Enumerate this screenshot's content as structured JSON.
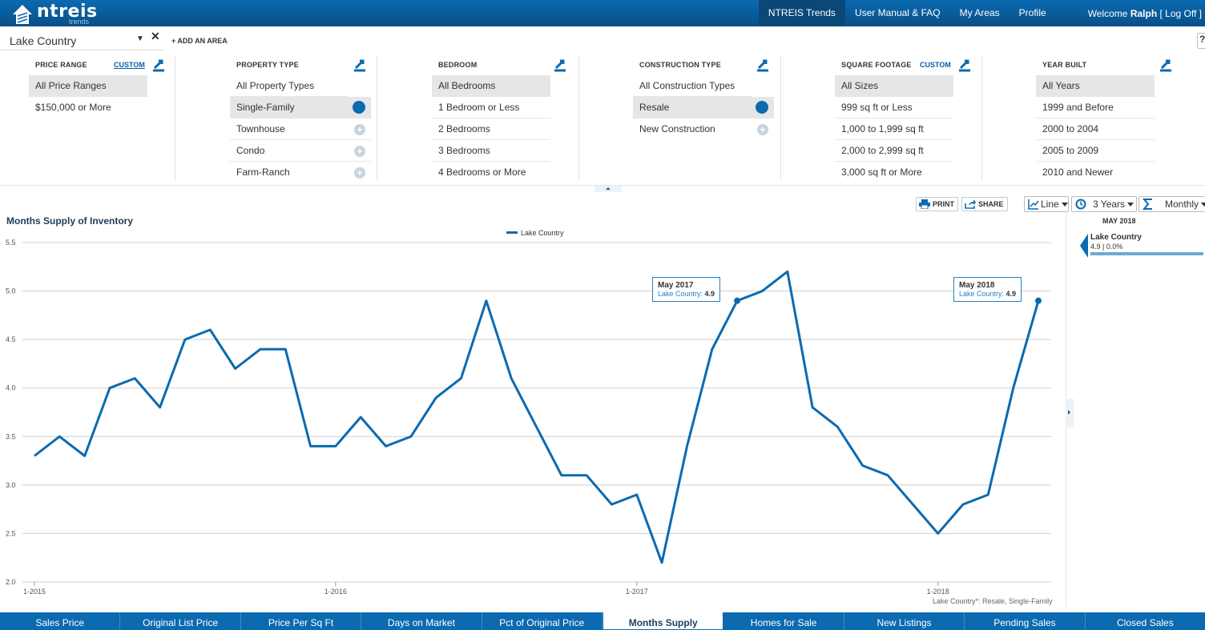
{
  "topbar": {
    "logo_text": "ntreis",
    "logo_sub": "trends",
    "nav": [
      "NTREIS Trends",
      "User Manual & FAQ",
      "My Areas",
      "Profile"
    ],
    "welcome_prefix": "Welcome",
    "user_name": "Ralph",
    "logoff": "[ Log Off ]"
  },
  "area": {
    "name": "Lake Country",
    "add_label": "+ ADD AN AREA",
    "help": "?"
  },
  "filters": {
    "custom_label": "CUSTOM",
    "price": {
      "title": "PRICE RANGE",
      "items": [
        "All Price Ranges",
        "$150,000 or More"
      ]
    },
    "property": {
      "title": "PROPERTY TYPE",
      "items": [
        "All Property Types",
        "Single-Family",
        "Townhouse",
        "Condo",
        "Farm-Ranch"
      ]
    },
    "bedroom": {
      "title": "BEDROOM",
      "items": [
        "All Bedrooms",
        "1 Bedroom or Less",
        "2 Bedrooms",
        "3 Bedrooms",
        "4 Bedrooms or More"
      ]
    },
    "construction": {
      "title": "CONSTRUCTION TYPE",
      "items": [
        "All Construction Types",
        "Resale",
        "New Construction"
      ]
    },
    "sqft": {
      "title": "SQUARE FOOTAGE",
      "items": [
        "All Sizes",
        "999 sq ft or Less",
        "1,000 to 1,999 sq ft",
        "2,000 to 2,999 sq ft",
        "3,000 sq ft or More"
      ]
    },
    "year": {
      "title": "YEAR BUILT",
      "items": [
        "All Years",
        "1999 and Before",
        "2000 to 2004",
        "2005 to 2009",
        "2010 and Newer"
      ]
    }
  },
  "toolbar": {
    "print": "PRINT",
    "share": "SHARE",
    "chart_type": "Line",
    "range": "3 Years",
    "interval": "Monthly"
  },
  "side": {
    "date": "MAY 2018",
    "series": "Lake Country",
    "value": "4.9 | 0.0%"
  },
  "tooltips": [
    {
      "date": "May 2017",
      "series": "Lake Country:",
      "value": "4.9"
    },
    {
      "date": "May 2018",
      "series": "Lake Country:",
      "value": "4.9"
    }
  ],
  "footnote": "Lake Country*: Resale, Single-Family",
  "tabs": [
    "Sales Price",
    "Original List Price",
    "Price Per Sq Ft",
    "Days on Market",
    "Pct of Original Price",
    "Months Supply",
    "Homes for Sale",
    "New Listings",
    "Pending Sales",
    "Closed Sales"
  ],
  "active_tab": "Months Supply",
  "colors": {
    "brand": "#0b6ab0",
    "line": "#0b6ab0"
  },
  "chart_data": {
    "type": "line",
    "title": "Months Supply of Inventory",
    "legend": [
      "Lake Country"
    ],
    "legend_position": "top-center",
    "x_ticks": [
      "1-2015",
      "1-2016",
      "1-2017",
      "1-2018"
    ],
    "y_ticks": [
      "2.0",
      "2.5",
      "3.0",
      "3.5",
      "4.0",
      "4.5",
      "5.0",
      "5.5"
    ],
    "ylim": [
      2.0,
      5.5
    ],
    "grid": true,
    "series": [
      {
        "name": "Lake Country",
        "x": [
          "2015-01",
          "2015-02",
          "2015-03",
          "2015-04",
          "2015-05",
          "2015-06",
          "2015-07",
          "2015-08",
          "2015-09",
          "2015-10",
          "2015-11",
          "2015-12",
          "2016-01",
          "2016-02",
          "2016-03",
          "2016-04",
          "2016-05",
          "2016-06",
          "2016-07",
          "2016-08",
          "2016-09",
          "2016-10",
          "2016-11",
          "2016-12",
          "2017-01",
          "2017-02",
          "2017-03",
          "2017-04",
          "2017-05",
          "2017-06",
          "2017-07",
          "2017-08",
          "2017-09",
          "2017-10",
          "2017-11",
          "2017-12",
          "2018-01",
          "2018-02",
          "2018-03",
          "2018-04",
          "2018-05"
        ],
        "values": [
          3.3,
          3.5,
          3.3,
          4.0,
          4.1,
          3.8,
          4.5,
          4.6,
          4.2,
          4.4,
          4.4,
          3.4,
          3.4,
          3.7,
          3.4,
          3.5,
          3.9,
          4.1,
          4.9,
          4.1,
          3.6,
          3.1,
          3.1,
          2.8,
          2.9,
          2.2,
          3.4,
          4.4,
          4.9,
          5.0,
          5.2,
          3.8,
          3.6,
          3.2,
          3.1,
          2.8,
          2.5,
          2.8,
          2.9,
          4.0,
          4.9
        ]
      }
    ]
  }
}
